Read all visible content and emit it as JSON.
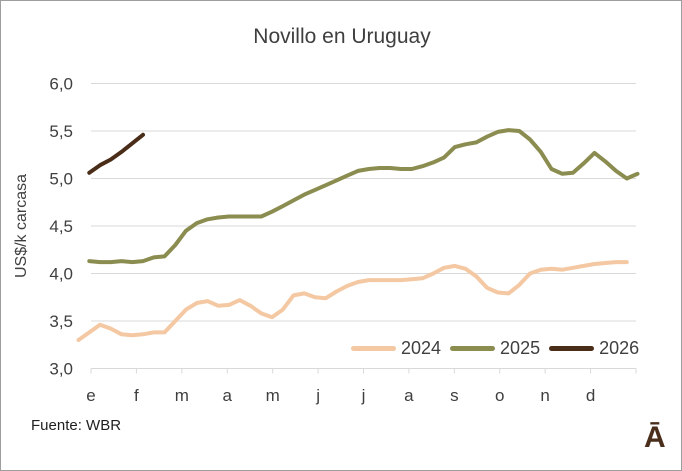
{
  "footer": {
    "source": "Fuente: WBR",
    "logo": "Ā"
  },
  "chart_data": {
    "type": "line",
    "title": "Novillo en Uruguay",
    "ylabel": "US$/k carcasa",
    "ylim": [
      3.0,
      6.0
    ],
    "grid": true,
    "grid_color": "#d9d9d9",
    "axis_color": "#d9d9d9",
    "text_color": "#3f3f3f",
    "legend_position": "bottom-right-inside",
    "yticks": [
      {
        "value": 6.0,
        "label": "6,0"
      },
      {
        "value": 5.5,
        "label": "5,5"
      },
      {
        "value": 5.0,
        "label": "5,0"
      },
      {
        "value": 4.5,
        "label": "4,5"
      },
      {
        "value": 4.0,
        "label": "4,0"
      },
      {
        "value": 3.5,
        "label": "3,5"
      },
      {
        "value": 3.0,
        "label": "3,0"
      }
    ],
    "x_axis": {
      "unit": "weekly data, months of the year",
      "month_labels": [
        "e",
        "f",
        "m",
        "a",
        "m",
        "j",
        "j",
        "a",
        "s",
        "o",
        "n",
        "d"
      ]
    },
    "series": [
      {
        "name": "2024",
        "color": "#f4c8a2",
        "start_week": 0,
        "values": [
          3.3,
          3.38,
          3.46,
          3.42,
          3.36,
          3.35,
          3.36,
          3.38,
          3.38,
          3.5,
          3.62,
          3.69,
          3.71,
          3.66,
          3.67,
          3.72,
          3.66,
          3.58,
          3.54,
          3.62,
          3.77,
          3.79,
          3.75,
          3.74,
          3.81,
          3.87,
          3.91,
          3.93,
          3.93,
          3.93,
          3.93,
          3.94,
          3.95,
          4.0,
          4.06,
          4.08,
          4.05,
          3.97,
          3.85,
          3.8,
          3.79,
          3.88,
          4.0,
          4.04,
          4.05,
          4.04,
          4.06,
          4.08,
          4.1,
          4.11,
          4.12,
          4.12
        ]
      },
      {
        "name": "2025",
        "color": "#8b8c4f",
        "start_week": 1,
        "values": [
          4.13,
          4.12,
          4.12,
          4.13,
          4.12,
          4.13,
          4.17,
          4.18,
          4.3,
          4.45,
          4.53,
          4.57,
          4.59,
          4.6,
          4.6,
          4.6,
          4.6,
          4.65,
          4.71,
          4.77,
          4.83,
          4.88,
          4.93,
          4.98,
          5.03,
          5.08,
          5.1,
          5.11,
          5.11,
          5.1,
          5.1,
          5.13,
          5.17,
          5.22,
          5.33,
          5.36,
          5.38,
          5.44,
          5.49,
          5.51,
          5.5,
          5.41,
          5.28,
          5.1,
          5.05,
          5.06,
          5.16,
          5.27,
          5.18,
          5.08,
          5.0,
          5.05
        ]
      },
      {
        "name": "2026",
        "color": "#4a2d18",
        "start_week": 1,
        "values": [
          5.06,
          5.14,
          5.2,
          5.28,
          5.37,
          5.46
        ]
      }
    ]
  }
}
